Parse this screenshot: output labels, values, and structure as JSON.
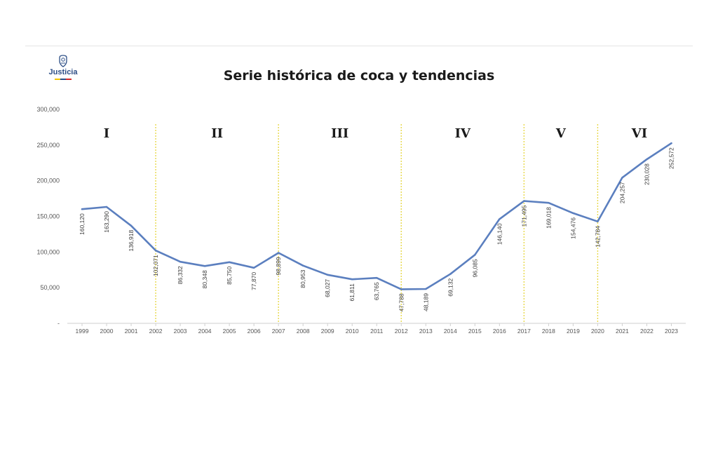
{
  "logo": {
    "text": "Justicia",
    "emblem": "shield-emblem-icon"
  },
  "chart_data": {
    "type": "line",
    "title": "Serie histórica de coca y tendencias",
    "xlabel": "",
    "ylabel": "",
    "ylim": [
      0,
      300000
    ],
    "yticks": [
      {
        "value": 0,
        "label": "-"
      },
      {
        "value": 50000,
        "label": "50,000"
      },
      {
        "value": 100000,
        "label": "100,000"
      },
      {
        "value": 150000,
        "label": "150,000"
      },
      {
        "value": 200000,
        "label": "200,000"
      },
      {
        "value": 250000,
        "label": "250,000"
      },
      {
        "value": 300000,
        "label": "300,000"
      }
    ],
    "grid": false,
    "line_color": "#5b7fbf",
    "divider_color": "#e8d84a",
    "x": [
      "1999",
      "2000",
      "2001",
      "2002",
      "2003",
      "2004",
      "2005",
      "2006",
      "2007",
      "2008",
      "2009",
      "2010",
      "2011",
      "2012",
      "2013",
      "2014",
      "2015",
      "2016",
      "2017",
      "2018",
      "2019",
      "2020",
      "2021",
      "2022",
      "2023"
    ],
    "values": [
      160120,
      163290,
      136918,
      102071,
      86332,
      80348,
      85750,
      77870,
      98899,
      80953,
      68027,
      61811,
      63765,
      47788,
      48189,
      69132,
      96085,
      146140,
      171495,
      169018,
      154476,
      142784,
      204257,
      230028,
      252572
    ],
    "data_labels": [
      "160,120",
      "163,290",
      "136,918",
      "102,071",
      "86,332",
      "80,348",
      "85,750",
      "77,870",
      "98,899",
      "80,953",
      "68,027",
      "61,811",
      "63,765",
      "47,788",
      "48,189",
      "69,132",
      "96,085",
      "146,140",
      "171,495",
      "169,018",
      "154,476",
      "142,784",
      "204,257",
      "230,028",
      "252,572"
    ],
    "dividers": [
      "2002",
      "2007",
      "2012",
      "2017",
      "2020"
    ],
    "periods": [
      {
        "label": "I",
        "x_center": "2000"
      },
      {
        "label": "II",
        "x_center": "2004.5"
      },
      {
        "label": "III",
        "x_center": "2009.5"
      },
      {
        "label": "IV",
        "x_center": "2014.5"
      },
      {
        "label": "V",
        "x_center": "2018.5"
      },
      {
        "label": "VI",
        "x_center": "2021.7"
      }
    ]
  }
}
